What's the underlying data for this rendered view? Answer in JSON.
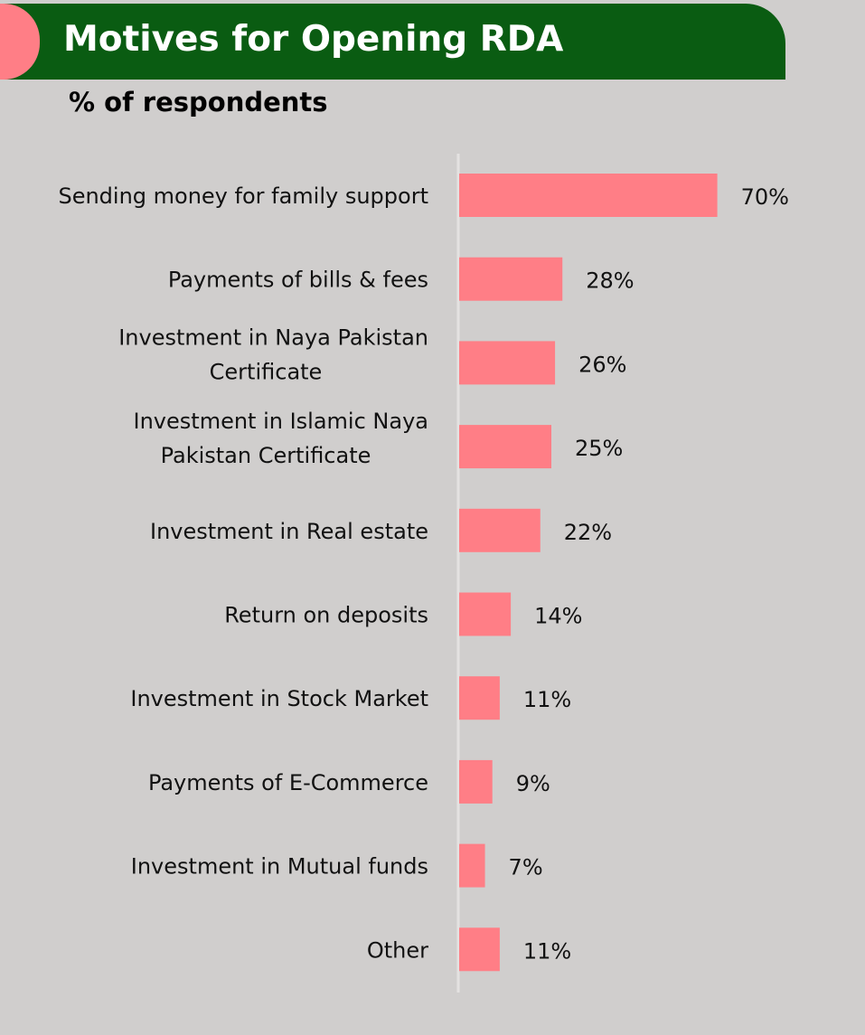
{
  "header": {
    "title": "Motives for Opening RDA",
    "subtitle": "% of respondents"
  },
  "colors": {
    "background": "#d0cecd",
    "header_band": "#0a5c12",
    "header_accent": "#ff7e86",
    "bar": "#ff7e86",
    "axis": "#e4e2e1"
  },
  "chart_data": {
    "type": "bar",
    "orientation": "horizontal",
    "categories": [
      "Sending money for family support",
      "Payments of bills & fees",
      "Investment in Naya Pakistan Certificate",
      "Investment in Islamic Naya Pakistan Certificate",
      "Investment in Real estate",
      "Return on deposits",
      "Investment in Stock Market",
      "Payments of E-Commerce",
      "Investment in Mutual funds",
      "Other"
    ],
    "values": [
      70,
      28,
      26,
      25,
      22,
      14,
      11,
      9,
      7,
      11
    ],
    "data_labels": [
      "70%",
      "28%",
      "26%",
      "25%",
      "22%",
      "14%",
      "11%",
      "9%",
      "7%",
      "11%"
    ],
    "title": "Motives for Opening RDA",
    "subtitle": "% of respondents",
    "xlabel": "",
    "ylabel": "",
    "xlim": [
      0,
      100
    ],
    "grid": false,
    "legend": "none"
  }
}
